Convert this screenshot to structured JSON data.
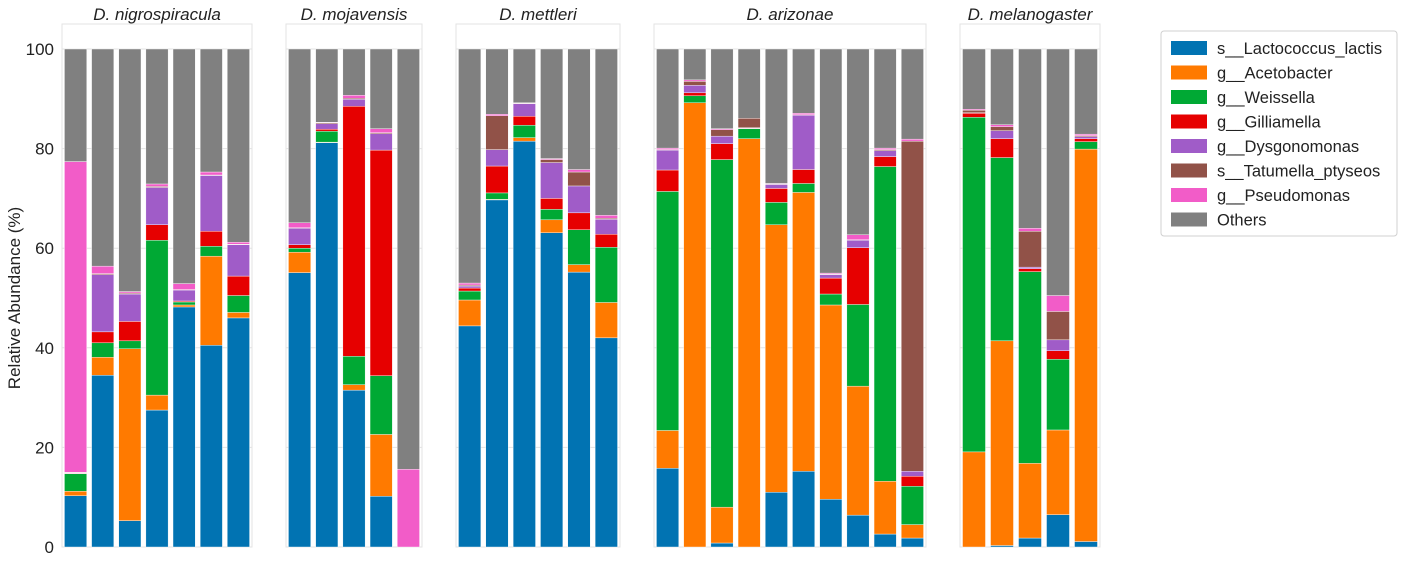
{
  "chart_data": {
    "type": "bar",
    "stacked": true,
    "ylabel": "Relative Abundance (%)",
    "ylim": [
      0,
      100
    ],
    "yticks": [
      0,
      20,
      40,
      60,
      80,
      100
    ],
    "grid": true,
    "legend_position": "top-right",
    "taxa": [
      {
        "name": "s__Lactococcus_lactis",
        "color": "#0173b2"
      },
      {
        "name": "g__Acetobacter",
        "color": "#ff7a00"
      },
      {
        "name": "g__Weissella",
        "color": "#00a934"
      },
      {
        "name": "g__Gilliamella",
        "color": "#e60000"
      },
      {
        "name": "g__Dysgonomonas",
        "color": "#a05cc8"
      },
      {
        "name": "s__Tatumella_ptyseos",
        "color": "#915248"
      },
      {
        "name": "g__Pseudomonas",
        "color": "#f25cc8"
      },
      {
        "name": "Others",
        "color": "#808080"
      }
    ],
    "panels": [
      {
        "title": "D. nigrospiracula",
        "samples": [
          [
            10.3,
            0.9,
            3.5,
            0.1,
            0.1,
            0.1,
            62.4,
            22.6
          ],
          [
            34.5,
            3.6,
            2.9,
            2.2,
            11.5,
            0.2,
            1.5,
            43.6
          ],
          [
            5.3,
            34.5,
            1.6,
            3.9,
            5.5,
            0.2,
            0.3,
            48.7
          ],
          [
            27.5,
            3.0,
            31.1,
            3.1,
            7.5,
            0.2,
            0.5,
            27.1
          ],
          [
            48.2,
            0.4,
            0.6,
            0.2,
            2.2,
            0.1,
            1.2,
            47.1
          ],
          [
            40.5,
            17.9,
            2.0,
            3.0,
            11.2,
            0.1,
            0.6,
            24.7
          ],
          [
            46.0,
            1.1,
            3.4,
            3.9,
            6.3,
            0.1,
            0.4,
            38.8
          ]
        ]
      },
      {
        "title": "D. mojavensis",
        "samples": [
          [
            55.1,
            4.1,
            0.8,
            0.7,
            3.3,
            0.1,
            1.0,
            34.9
          ],
          [
            81.2,
            0.1,
            2.2,
            0.4,
            1.1,
            0.2,
            0.1,
            14.7
          ],
          [
            31.5,
            1.1,
            5.7,
            50.2,
            1.4,
            0.2,
            0.6,
            9.3
          ],
          [
            10.2,
            12.4,
            11.8,
            45.3,
            3.3,
            0.2,
            0.8,
            16.0
          ],
          [
            0.0,
            0.0,
            0.0,
            0.0,
            0.0,
            0.0,
            15.6,
            84.4
          ]
        ]
      },
      {
        "title": "D. mettleri",
        "samples": [
          [
            44.4,
            5.2,
            1.8,
            0.6,
            0.4,
            0.2,
            0.4,
            47.0
          ],
          [
            69.7,
            0.1,
            1.3,
            5.4,
            3.3,
            6.8,
            0.3,
            13.1
          ],
          [
            81.5,
            0.7,
            2.5,
            1.8,
            2.5,
            0.1,
            0.1,
            10.8
          ],
          [
            63.1,
            2.6,
            2.1,
            2.2,
            7.2,
            0.6,
            0.2,
            22.0
          ],
          [
            55.2,
            1.5,
            7.0,
            3.4,
            5.4,
            2.8,
            0.5,
            24.2
          ],
          [
            42.0,
            7.1,
            11.1,
            2.6,
            3.0,
            0.2,
            0.6,
            33.4
          ]
        ]
      },
      {
        "title": "D. arizonae",
        "samples": [
          [
            15.8,
            7.6,
            48.0,
            4.3,
            4.0,
            0.1,
            0.3,
            19.9
          ],
          [
            0.0,
            89.2,
            1.4,
            0.6,
            1.5,
            0.8,
            0.3,
            6.2
          ],
          [
            0.8,
            7.2,
            69.8,
            3.2,
            1.5,
            1.3,
            0.2,
            16.0
          ],
          [
            0.0,
            82.0,
            2.0,
            0.1,
            0.1,
            1.9,
            0.0,
            13.9
          ],
          [
            11.0,
            53.7,
            4.5,
            2.8,
            0.8,
            0.1,
            0.1,
            27.0
          ],
          [
            15.2,
            56.0,
            1.8,
            2.8,
            10.9,
            0.1,
            0.3,
            12.9
          ],
          [
            9.6,
            39.0,
            2.2,
            3.2,
            0.7,
            0.1,
            0.2,
            45.0
          ],
          [
            6.4,
            25.9,
            16.4,
            11.4,
            1.5,
            0.1,
            1.0,
            37.3
          ],
          [
            2.6,
            10.6,
            63.2,
            2.0,
            1.2,
            0.2,
            0.3,
            19.9
          ],
          [
            1.8,
            2.7,
            7.7,
            2.0,
            1.0,
            66.3,
            0.4,
            18.1
          ]
        ]
      },
      {
        "title": "D. melanogaster",
        "samples": [
          [
            0.0,
            19.1,
            67.2,
            0.8,
            0.1,
            0.5,
            0.2,
            12.1
          ],
          [
            0.3,
            41.1,
            36.8,
            3.8,
            1.6,
            0.8,
            0.4,
            15.2
          ],
          [
            1.8,
            15.0,
            38.5,
            0.6,
            0.3,
            7.2,
            0.6,
            36.0
          ],
          [
            6.5,
            17.0,
            14.2,
            1.7,
            2.2,
            5.7,
            3.2,
            49.5
          ],
          [
            1.1,
            78.8,
            1.5,
            0.6,
            0.4,
            0.2,
            0.3,
            17.1
          ]
        ]
      }
    ]
  }
}
